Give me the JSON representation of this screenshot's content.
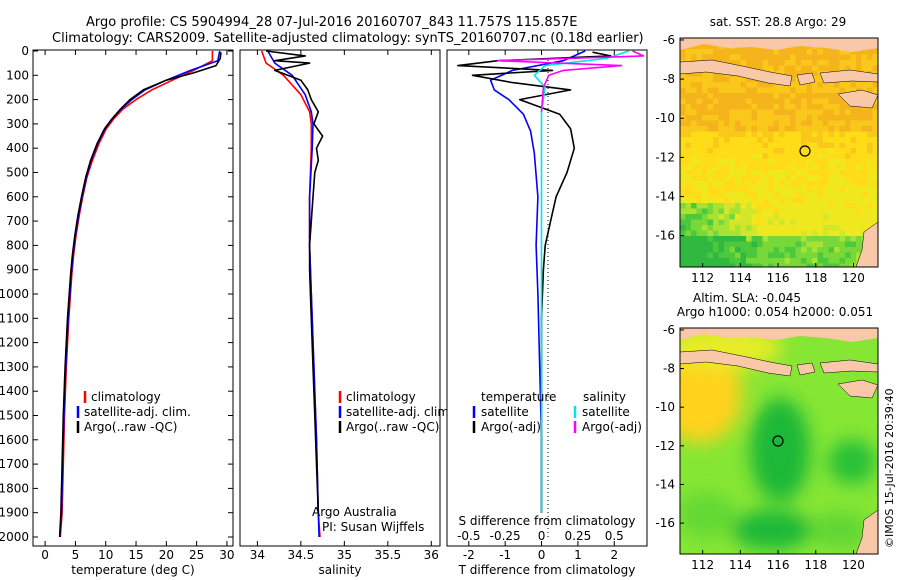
{
  "header": {
    "line1": "Argo profile: CS 5904994_28 07-Jul-2016 20160707_843 11.757S 115.857E",
    "line2": "Climatology: CARS2009. Satellite-adjusted climatology: synTS_20160707.nc (0.18d earlier)"
  },
  "colors": {
    "climatology": "#ff0000",
    "satellite": "#0000ff",
    "argo": "#000000",
    "sal_satellite": "#00e5e5",
    "sal_argo": "#ff00ff",
    "land": "#f8c8a8"
  },
  "chart_data": [
    {
      "type": "line",
      "name": "temperature-panel",
      "xlabel": "temperature (deg C)",
      "xlim": [
        -2,
        31
      ],
      "ylim": [
        2060,
        0
      ],
      "xticks": [
        0,
        5,
        10,
        15,
        20,
        25,
        30
      ],
      "yticks": [
        0,
        100,
        200,
        300,
        400,
        500,
        600,
        700,
        800,
        900,
        1000,
        1100,
        1200,
        1300,
        1400,
        1500,
        1600,
        1700,
        1800,
        1900,
        2000
      ],
      "legend": [
        "climatology",
        "satellite-adj. clim.",
        "Argo(..raw -QC)"
      ],
      "series": [
        {
          "name": "climatology",
          "x": [
            27.6,
            27.6,
            24.5,
            21,
            17.6,
            15,
            12.8,
            11.3,
            10.1,
            8.9,
            7.8,
            6.9,
            6.2,
            5.6,
            5.1,
            4.7,
            4.4,
            3.9,
            3.5,
            3.2,
            3.0,
            2.8,
            2.5
          ],
          "y": [
            0,
            40,
            80,
            120,
            160,
            200,
            240,
            280,
            320,
            380,
            450,
            520,
            600,
            680,
            760,
            840,
            920,
            1100,
            1300,
            1500,
            1700,
            1900,
            2000
          ]
        },
        {
          "name": "satellite-adj. clim.",
          "x": [
            28.8,
            28.5,
            24,
            20,
            16.5,
            14.3,
            12.5,
            11.1,
            9.9,
            8.7,
            7.6,
            6.8,
            6.1,
            5.5,
            5.0,
            4.6,
            4.3,
            3.8,
            3.4,
            3.1,
            2.9,
            2.7,
            2.4
          ],
          "y": [
            0,
            40,
            80,
            120,
            160,
            200,
            240,
            280,
            320,
            380,
            450,
            520,
            600,
            680,
            760,
            840,
            920,
            1100,
            1300,
            1500,
            1700,
            1900,
            2000
          ]
        },
        {
          "name": "Argo(..raw -QC)",
          "x": [
            29.0,
            28.9,
            28.2,
            24.5,
            20,
            16.2,
            14,
            12.4,
            11,
            9.8,
            8.6,
            7.5,
            6.7,
            6.0,
            5.4,
            4.9,
            4.5,
            4.2,
            3.7,
            3.3,
            3.0,
            2.8,
            2.6,
            2.4
          ],
          "y": [
            5,
            30,
            60,
            90,
            120,
            160,
            200,
            240,
            280,
            320,
            380,
            450,
            520,
            600,
            680,
            760,
            840,
            920,
            1100,
            1300,
            1500,
            1700,
            1900,
            2000
          ]
        }
      ]
    },
    {
      "type": "line",
      "name": "salinity-panel",
      "xlabel": "salinity",
      "xlim": [
        33.8,
        36.1
      ],
      "ylim": [
        2060,
        0
      ],
      "xticks": [
        34,
        34.5,
        35,
        35.5,
        36
      ],
      "legend": [
        "climatology",
        "satellite-adj. clim.",
        "Argo(..raw -QC)"
      ],
      "annotations": [
        "Argo Australia",
        "PI: Susan Wijffels"
      ],
      "series": [
        {
          "name": "climatology",
          "x": [
            34.05,
            34.1,
            34.3,
            34.5,
            34.6,
            34.62,
            34.62,
            34.6,
            34.6,
            34.62,
            34.65,
            34.68,
            34.7,
            34.72
          ],
          "y": [
            0,
            50,
            100,
            180,
            250,
            300,
            400,
            600,
            800,
            1000,
            1300,
            1600,
            1900,
            2000
          ]
        },
        {
          "name": "satellite-adj. clim.",
          "x": [
            34.12,
            34.2,
            34.4,
            34.55,
            34.62,
            34.64,
            34.63,
            34.6,
            34.6,
            34.62,
            34.65,
            34.68,
            34.7,
            34.71
          ],
          "y": [
            0,
            50,
            100,
            180,
            250,
            300,
            400,
            600,
            800,
            1000,
            1300,
            1600,
            1900,
            2000
          ]
        },
        {
          "name": "Argo(..raw -QC)",
          "x": [
            34.1,
            34.55,
            34.2,
            34.6,
            34.2,
            34.5,
            34.58,
            34.62,
            34.7,
            34.65,
            34.75,
            34.68,
            34.7,
            34.66,
            34.64,
            34.62,
            34.6,
            34.6,
            34.62,
            34.64,
            34.66,
            34.68,
            34.7
          ],
          "y": [
            0,
            20,
            40,
            50,
            80,
            120,
            160,
            200,
            250,
            300,
            350,
            400,
            450,
            500,
            600,
            700,
            800,
            900,
            1100,
            1300,
            1500,
            1700,
            1900
          ]
        }
      ]
    },
    {
      "type": "line",
      "name": "difference-panel",
      "xlabel": "T difference from climatology",
      "xlabel_top": "S difference from climatology",
      "xlim": [
        -2.6,
        2.9
      ],
      "ylim": [
        2060,
        0
      ],
      "xticks": [
        -2,
        -1,
        0,
        1,
        2
      ],
      "xticks_s": [
        "-0.5",
        "-0.25",
        "0",
        "0.25",
        "0.5"
      ],
      "legend_temperature": [
        "temperature",
        "satellite",
        "Argo(-adj)"
      ],
      "legend_salinity": [
        "salinity",
        "satellite",
        "Argo(-adj)"
      ],
      "series": [
        {
          "name": "temperature satellite",
          "x": [
            1.2,
            0.6,
            -0.8,
            -1.4,
            -1.3,
            -0.9,
            -0.5,
            -0.3,
            -0.2,
            -0.1,
            -0.15,
            -0.1,
            -0.05,
            0,
            0
          ],
          "y": [
            0,
            40,
            80,
            120,
            160,
            200,
            260,
            330,
            420,
            600,
            800,
            1000,
            1300,
            1600,
            1900
          ]
        },
        {
          "name": "temperature Argo(-adj)",
          "x": [
            1.4,
            1.9,
            -1.2,
            -2.3,
            0.3,
            -1.9,
            -0.8,
            0.8,
            -0.6,
            0.5,
            0.8,
            0.9,
            0.7,
            0.4,
            0.25,
            0.1,
            0.05,
            0,
            0,
            0
          ],
          "y": [
            5,
            20,
            40,
            60,
            80,
            100,
            130,
            160,
            200,
            260,
            320,
            400,
            500,
            600,
            700,
            800,
            900,
            1100,
            1500,
            1900
          ]
        },
        {
          "name": "salinity satellite",
          "x": [
            2.4,
            1.8,
            0.1,
            -0.2,
            0.1,
            0,
            0,
            0,
            0
          ],
          "y": [
            0,
            30,
            60,
            100,
            150,
            250,
            500,
            1000,
            1900
          ]
        },
        {
          "name": "salinity Argo(-adj)",
          "x": [
            2.5,
            2.8,
            -1.2,
            2.2,
            0.6,
            0.2,
            0.05,
            0
          ],
          "y": [
            0,
            20,
            40,
            60,
            80,
            100,
            150,
            250
          ]
        }
      ]
    },
    {
      "type": "heatmap",
      "name": "sst-map",
      "title": "sat. SST: 28.8 Argo: 29",
      "xticks": [
        112,
        114,
        116,
        118,
        120
      ],
      "yticks": [
        -6,
        -8,
        -10,
        -12,
        -14,
        -16
      ],
      "argo_position": {
        "lon": 115.857,
        "lat": -11.757
      }
    },
    {
      "type": "heatmap",
      "name": "sla-map",
      "title": "Altim. SLA: -0.045",
      "subtitle": "Argo h1000: 0.054 h2000: 0.051",
      "xticks": [
        112,
        114,
        116,
        118,
        120
      ],
      "yticks": [
        -6,
        -8,
        -10,
        -12,
        -14,
        -16
      ],
      "argo_position": {
        "lon": 115.857,
        "lat": -11.757
      }
    }
  ],
  "footer": {
    "stamp": "©IMOS 15-Jul-2016 20:39:40"
  }
}
